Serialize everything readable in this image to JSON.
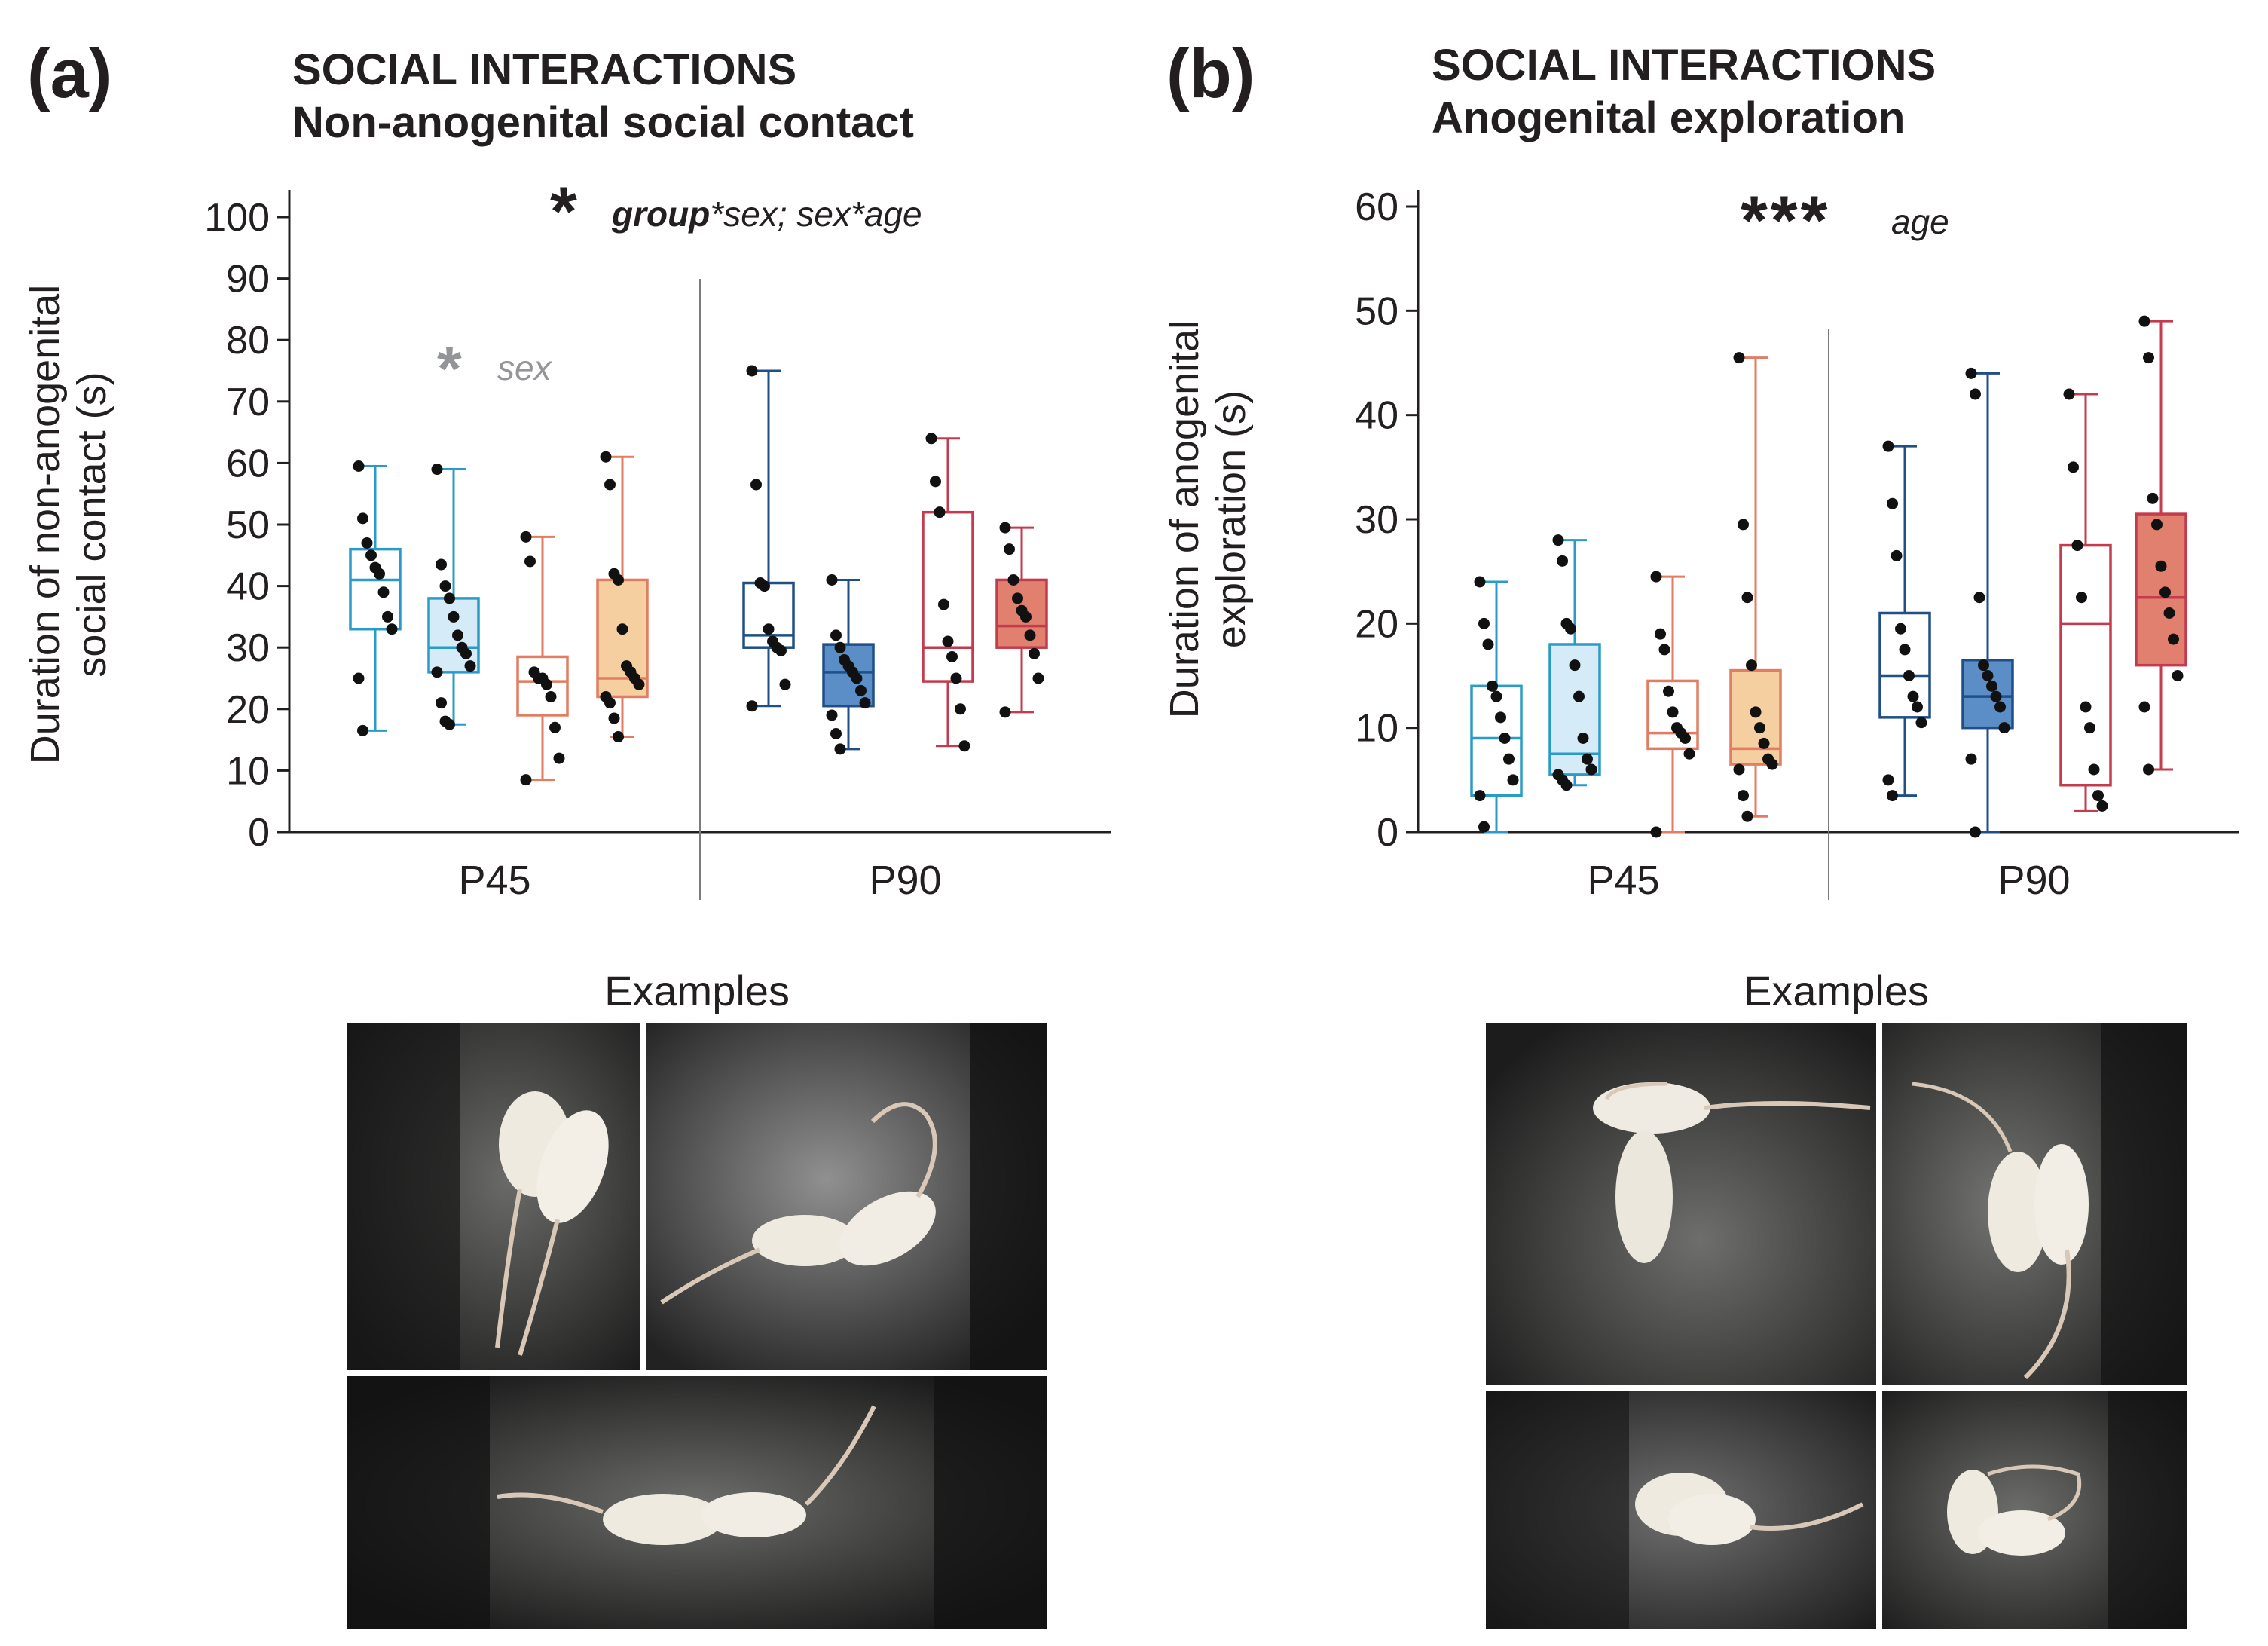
{
  "panels": [
    {
      "letter": "(a)",
      "title_line1": "SOCIAL INTERACTIONS",
      "title_line2": "Non-anogenital social contact",
      "examples_label": "Examples"
    },
    {
      "letter": "(b)",
      "title_line1": "SOCIAL INTERACTIONS",
      "title_line2": "Anogenital exploration",
      "examples_label": "Examples"
    }
  ],
  "colors": {
    "light_blue": "#2a9bc8",
    "light_blue_fill": "#d5ecf8",
    "dark_blue": "#1f4f86",
    "dark_blue_fill": "#5b8dc7",
    "salmon": "#e07d62",
    "orange_fill": "#f6cfa0",
    "dark_red": "#c33b4c",
    "red_fill": "#e1806e",
    "axis": "#231f20",
    "annotation_gray": "#939598"
  },
  "chart_data": [
    {
      "type": "box",
      "ylabel_line1": "Duration of non-anogenital",
      "ylabel_line2": "social contact (s)",
      "ylim": [
        0,
        100
      ],
      "yticks": [
        0,
        10,
        20,
        30,
        40,
        50,
        60,
        70,
        80,
        90,
        100
      ],
      "groups": [
        "P45",
        "P90"
      ],
      "annotation_main_star": "*",
      "annotation_main_bold": "group",
      "annotation_main_rest": "*sex; sex*age",
      "annotation_sub_star": "*",
      "annotation_sub_text": "sex",
      "boxes": [
        {
          "group": "P45",
          "color": "light_blue",
          "fill": "none",
          "min": 16.5,
          "q1": 33,
          "median": 41,
          "q3": 46,
          "max": 59.5,
          "points": [
            59.5,
            51,
            47,
            45,
            43,
            42,
            39,
            35,
            33,
            25,
            16.5
          ]
        },
        {
          "group": "P45",
          "color": "light_blue",
          "fill": "light_blue_fill",
          "min": 17.5,
          "q1": 26,
          "median": 30,
          "q3": 38,
          "max": 59,
          "points": [
            59,
            43.5,
            40,
            38,
            35,
            32,
            30,
            29,
            27,
            26,
            21,
            18,
            17.5
          ]
        },
        {
          "group": "P45",
          "color": "salmon",
          "fill": "none",
          "min": 8.5,
          "q1": 19,
          "median": 24.5,
          "q3": 28.5,
          "max": 48,
          "points": [
            48,
            44,
            26,
            25,
            25,
            24,
            22,
            17,
            12,
            8.5
          ]
        },
        {
          "group": "P45",
          "color": "salmon",
          "fill": "orange_fill",
          "min": 15.5,
          "q1": 22,
          "median": 25,
          "q3": 41,
          "max": 61,
          "points": [
            61,
            56.5,
            42,
            41,
            33,
            27,
            26,
            25,
            24,
            22,
            21,
            18.5,
            15.5
          ]
        },
        {
          "group": "P90",
          "color": "dark_blue",
          "fill": "none",
          "min": 20.5,
          "q1": 30,
          "median": 32,
          "q3": 40.5,
          "max": 75,
          "points": [
            75,
            56.5,
            40.5,
            40,
            33,
            31,
            30,
            29.5,
            24,
            20.5
          ]
        },
        {
          "group": "P90",
          "color": "dark_blue",
          "fill": "dark_blue_fill",
          "min": 13.5,
          "q1": 20.5,
          "median": 26,
          "q3": 30.5,
          "max": 41,
          "points": [
            41,
            32,
            30,
            28,
            27,
            26,
            25,
            23,
            21,
            19,
            16,
            13.5
          ]
        },
        {
          "group": "P90",
          "color": "dark_red",
          "fill": "none",
          "min": 14,
          "q1": 24.5,
          "median": 30,
          "q3": 52,
          "max": 64,
          "points": [
            64,
            57,
            52,
            37,
            31,
            28.5,
            25,
            20,
            14
          ]
        },
        {
          "group": "P90",
          "color": "dark_red",
          "fill": "red_fill",
          "min": 19.5,
          "q1": 30,
          "median": 33.5,
          "q3": 41,
          "max": 49.5,
          "points": [
            49.5,
            46,
            41,
            38,
            36,
            35,
            32,
            29,
            25,
            19.5
          ]
        }
      ]
    },
    {
      "type": "box",
      "ylabel_line1": "Duration of anogenital",
      "ylabel_line2": "exploration (s)",
      "ylim": [
        0,
        60
      ],
      "yticks": [
        0,
        10,
        20,
        30,
        40,
        50,
        60
      ],
      "groups": [
        "P45",
        "P90"
      ],
      "annotation_main_star": "***",
      "annotation_main_text": "age",
      "boxes": [
        {
          "group": "P45",
          "color": "light_blue",
          "fill": "none",
          "min": 0,
          "q1": 3.5,
          "median": 9,
          "q3": 14,
          "max": 24,
          "points": [
            24,
            20,
            18,
            14,
            13,
            11,
            9,
            7,
            5,
            3.5,
            0.5
          ]
        },
        {
          "group": "P45",
          "color": "light_blue",
          "fill": "light_blue_fill",
          "min": 4.5,
          "q1": 5.5,
          "median": 7.5,
          "q3": 18,
          "max": 28,
          "points": [
            28,
            26,
            20,
            19.5,
            16,
            13,
            9,
            7,
            6,
            5.5,
            5,
            4.5
          ]
        },
        {
          "group": "P45",
          "color": "salmon",
          "fill": "none",
          "min": 0,
          "q1": 8,
          "median": 9.5,
          "q3": 14.5,
          "max": 24.5,
          "points": [
            24.5,
            19,
            17.5,
            13.5,
            11.5,
            10,
            9.5,
            9,
            7.5,
            0
          ]
        },
        {
          "group": "P45",
          "color": "salmon",
          "fill": "orange_fill",
          "min": 1.5,
          "q1": 6.5,
          "median": 8,
          "q3": 15.5,
          "max": 45.5,
          "points": [
            45.5,
            29.5,
            22.5,
            16,
            11.5,
            10,
            8.5,
            7,
            6.5,
            6,
            3.5,
            1.5
          ]
        },
        {
          "group": "P90",
          "color": "dark_blue",
          "fill": "none",
          "min": 3.5,
          "q1": 11,
          "median": 15,
          "q3": 21,
          "max": 37,
          "points": [
            37,
            31.5,
            26.5,
            19.5,
            17.5,
            15,
            13,
            12,
            10.5,
            5,
            3.5
          ]
        },
        {
          "group": "P90",
          "color": "dark_blue",
          "fill": "dark_blue_fill",
          "min": 0,
          "q1": 10,
          "median": 13,
          "q3": 16.5,
          "max": 44,
          "points": [
            44,
            42,
            22.5,
            16,
            15,
            14,
            13,
            12,
            10,
            7,
            0
          ]
        },
        {
          "group": "P90",
          "color": "dark_red",
          "fill": "none",
          "min": 2,
          "q1": 4.5,
          "median": 20,
          "q3": 27.5,
          "max": 42,
          "points": [
            42,
            35,
            27.5,
            22.5,
            12,
            10,
            6,
            3.5,
            2.5
          ]
        },
        {
          "group": "P90",
          "color": "dark_red",
          "fill": "red_fill",
          "min": 6,
          "q1": 16,
          "median": 22.5,
          "q3": 30.5,
          "max": 49,
          "points": [
            49,
            45.5,
            32,
            29.5,
            25.5,
            23,
            21,
            18.5,
            15,
            12,
            6
          ]
        }
      ]
    }
  ]
}
